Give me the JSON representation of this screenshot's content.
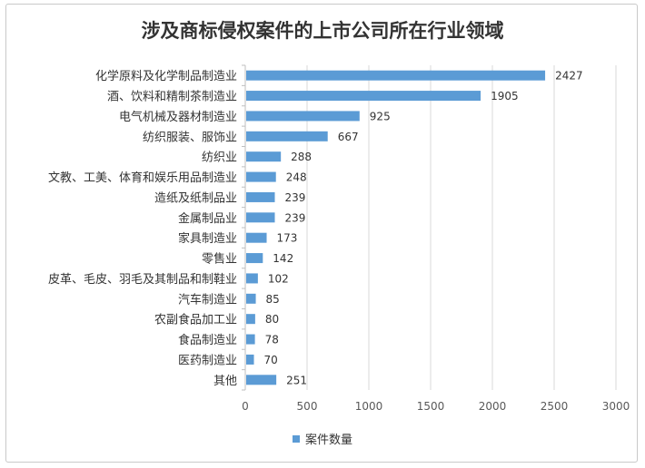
{
  "chart_data": {
    "type": "bar",
    "orientation": "horizontal",
    "title": "涉及商标侵权案件的上市公司所在行业领域",
    "categories": [
      "化学原料及化学制品制造业",
      "酒、饮料和精制茶制造业",
      "电气机械及器材制造业",
      "纺织服装、服饰业",
      "纺织业",
      "文教、工美、体育和娱乐用品制造业",
      "造纸及纸制品业",
      "金属制品业",
      "家具制造业",
      "零售业",
      "皮革、毛皮、羽毛及其制品和制鞋业",
      "汽车制造业",
      "农副食品加工业",
      "食品制造业",
      "医药制造业",
      "其他"
    ],
    "series": [
      {
        "name": "案件数量",
        "values": [
          2427,
          1905,
          925,
          667,
          288,
          248,
          239,
          239,
          173,
          142,
          102,
          85,
          80,
          78,
          70,
          251
        ],
        "color": "#5b9bd5"
      }
    ],
    "xlim": [
      0,
      3000
    ],
    "xticks": [
      0,
      500,
      1000,
      1500,
      2000,
      2500,
      3000
    ],
    "grid": true,
    "legend_position": "bottom"
  }
}
